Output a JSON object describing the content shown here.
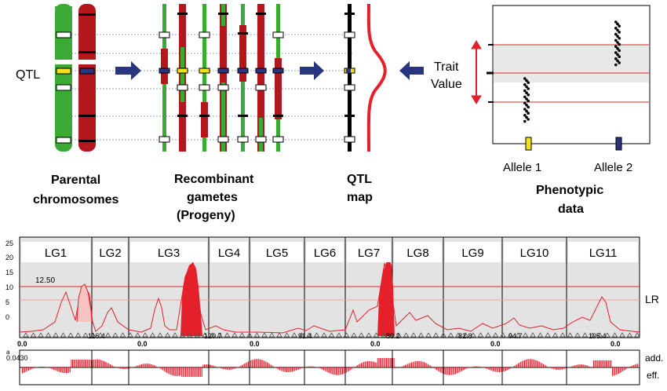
{
  "top": {
    "qtl_side_label": "QTL",
    "parental_caption": [
      "Parental",
      "chromosomes"
    ],
    "recombinant_caption": [
      "Recombinant",
      "gametes",
      "(Progeny)"
    ],
    "qtlmap_caption": [
      "QTL",
      "map"
    ],
    "phenotypic_caption": [
      "Phenotypic",
      "data"
    ],
    "trait_label": [
      "Trait",
      "Value"
    ],
    "allele1": "Allele 1",
    "allele2": "Allele 2"
  },
  "bottom": {
    "linkage_groups": [
      "LG1",
      "LG2",
      "LG3",
      "LG4",
      "LG5",
      "LG6",
      "LG7",
      "LG8",
      "LG9",
      "LG10",
      "LG11"
    ],
    "y_ticks": [
      "25",
      "20",
      "15",
      "10",
      "5",
      "0"
    ],
    "threshold_label": "12.50",
    "effect_scale_label": "0.0430",
    "effect_top_tick": "a",
    "lr_label": "LR",
    "add_eff_label": [
      "add.",
      "eff."
    ],
    "axis_zero_labels": [
      "0.0",
      "0.0",
      "0.0",
      "0.0",
      "0.0",
      "0.0"
    ],
    "lg_length_labels": [
      "116.4",
      "120.7",
      "91.4",
      "80.2",
      "82.8",
      "94.7",
      "105.4"
    ],
    "colors": {
      "peak": "#e4202a",
      "green": "#3aaa35",
      "red": "#b3161b",
      "qtl_blue": "#2a3580",
      "qtl_yellow": "#f2e21a"
    }
  }
}
